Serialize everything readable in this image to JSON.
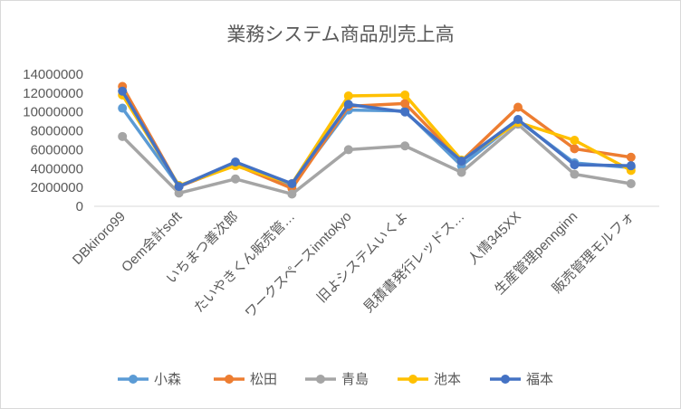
{
  "chart_data": {
    "type": "line",
    "title": "業務システム商品別売上高",
    "xlabel": "",
    "ylabel": "",
    "ylim": [
      0,
      14000000
    ],
    "yticks": [
      0,
      2000000,
      4000000,
      6000000,
      8000000,
      10000000,
      12000000,
      14000000
    ],
    "grid": false,
    "legend_position": "bottom",
    "categories": [
      "DBkiroro99",
      "Oem会計soft",
      "いちまつ善次郎",
      "たいやきくん販売管…",
      "ワークスペースinntokyo",
      "旧よシステムいくよ",
      "見積書発行レッドス…",
      "人情345XX",
      "生産管理pennginn",
      "販売管理モルフォ"
    ],
    "series": [
      {
        "name": "小森",
        "color": "#5B9BD5",
        "values": [
          10400000,
          2100000,
          4400000,
          2200000,
          10200000,
          10100000,
          4300000,
          9100000,
          4600000,
          4100000
        ]
      },
      {
        "name": "松田",
        "color": "#ED7D31",
        "values": [
          12700000,
          2100000,
          4400000,
          1900000,
          10600000,
          10900000,
          4800000,
          10500000,
          6100000,
          5200000
        ]
      },
      {
        "name": "青島",
        "color": "#A5A5A5",
        "values": [
          7400000,
          1400000,
          2900000,
          1300000,
          6000000,
          6400000,
          3600000,
          8700000,
          3400000,
          2400000
        ]
      },
      {
        "name": "池本",
        "color": "#FFC000",
        "values": [
          11800000,
          2200000,
          4300000,
          2400000,
          11700000,
          11800000,
          4900000,
          8900000,
          7000000,
          3800000
        ]
      },
      {
        "name": "福本",
        "color": "#4472C4",
        "values": [
          12200000,
          2100000,
          4700000,
          2400000,
          10800000,
          10000000,
          4800000,
          9200000,
          4400000,
          4300000
        ]
      }
    ]
  }
}
